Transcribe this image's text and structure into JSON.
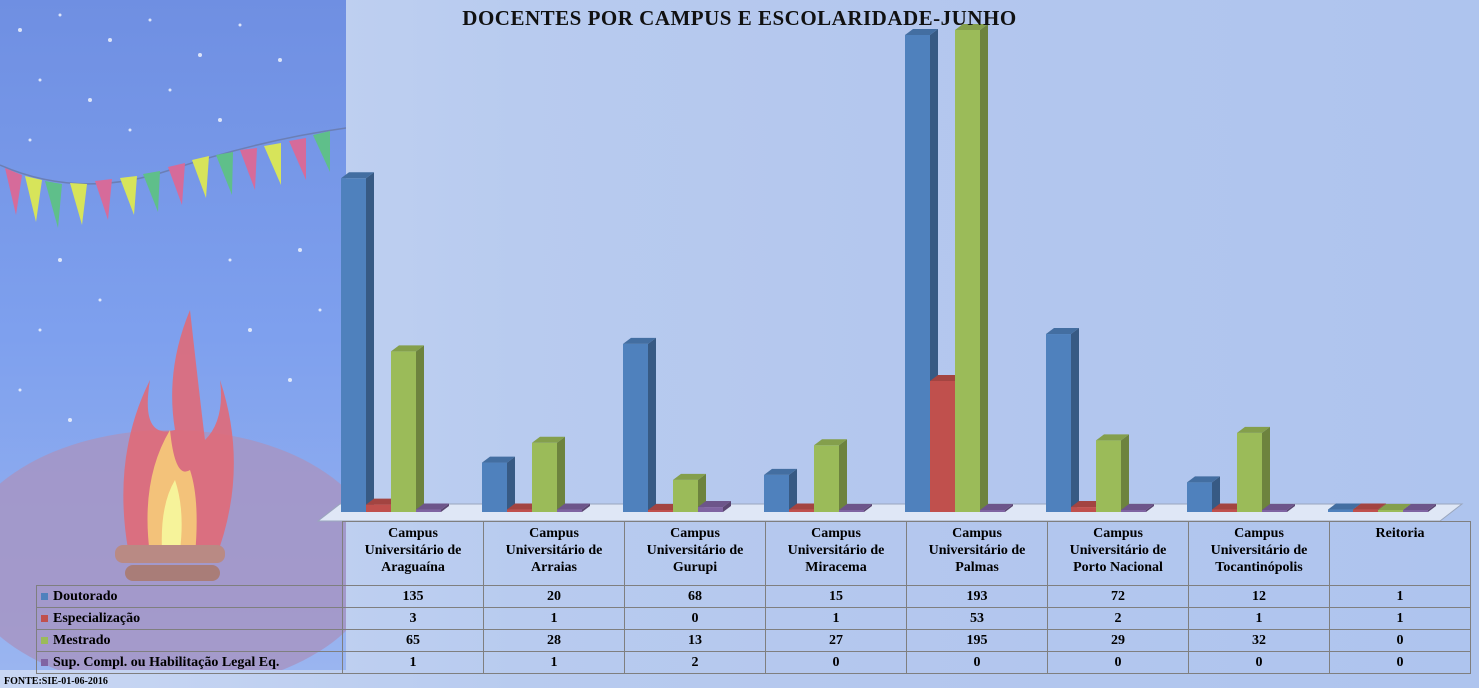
{
  "chart_data": {
    "type": "bar",
    "title": "DOCENTES POR CAMPUS E ESCOLARIDADE-JUNHO",
    "categories": [
      [
        "Campus",
        "Universitário de",
        "Araguaína"
      ],
      [
        "Campus",
        "Universitário de",
        "Arraias"
      ],
      [
        "Campus",
        "Universitário de",
        "Gurupi"
      ],
      [
        "Campus",
        "Universitário de",
        "Miracema"
      ],
      [
        "Campus",
        "Universitário de",
        "Palmas"
      ],
      [
        "Campus",
        "Universitário de",
        "Porto Nacional"
      ],
      [
        "Campus",
        "Universitário de",
        "Tocantinópolis"
      ],
      [
        "Reitoria"
      ]
    ],
    "series": [
      {
        "name": "Doutorado",
        "color": "#4f81bd",
        "values": [
          135,
          20,
          68,
          15,
          193,
          72,
          12,
          1
        ]
      },
      {
        "name": "Especialização",
        "color": "#c0504d",
        "values": [
          3,
          1,
          0,
          1,
          53,
          2,
          1,
          1
        ]
      },
      {
        "name": "Mestrado",
        "color": "#9bbb59",
        "values": [
          65,
          28,
          13,
          27,
          195,
          29,
          32,
          0
        ]
      },
      {
        "name": "Sup. Compl. ou Habilitação Legal Eq.",
        "color": "#8064a2",
        "values": [
          1,
          1,
          2,
          0,
          0,
          0,
          0,
          0
        ]
      }
    ],
    "ylim": [
      0,
      195
    ],
    "legend": "data-table",
    "source": "FONTE:SIE-01-06-2016"
  }
}
